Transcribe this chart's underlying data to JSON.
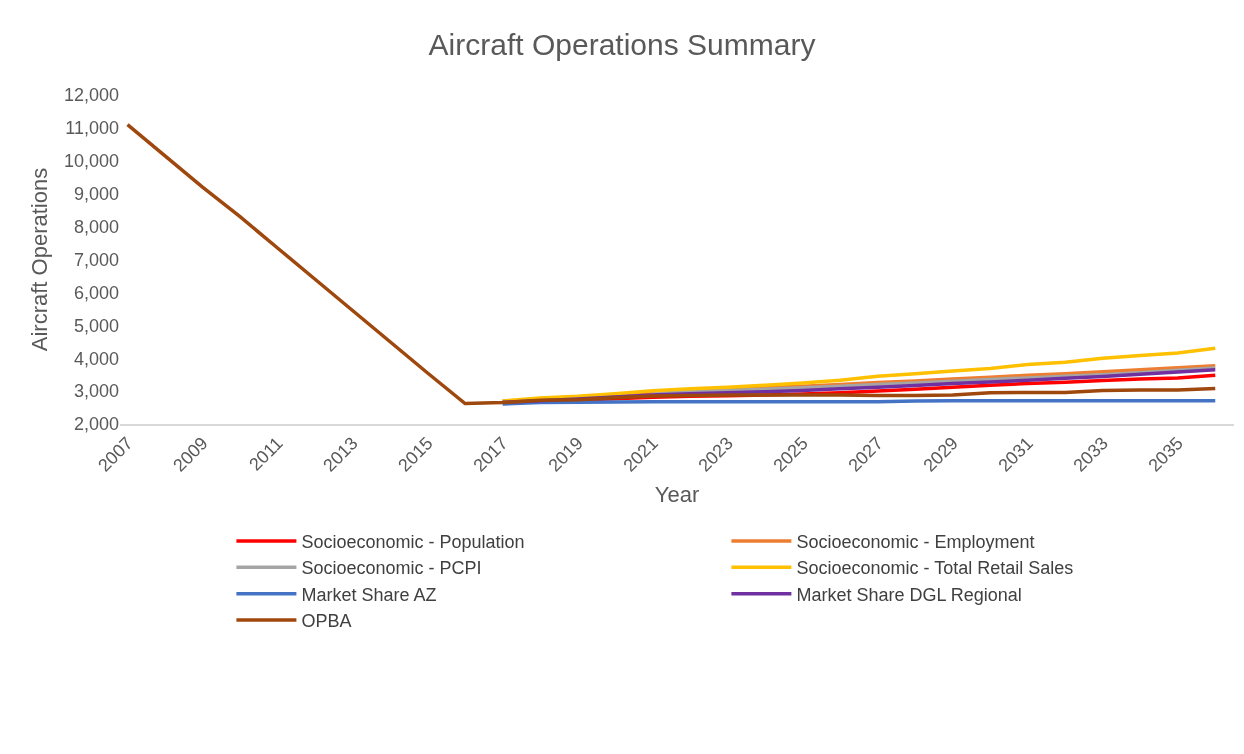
{
  "chart_data": {
    "type": "line",
    "title": "Aircraft Operations Summary",
    "xlabel": "Year",
    "ylabel": "Aircraft Operations",
    "categories": [
      "2007",
      null,
      "2009",
      null,
      "2011",
      null,
      "2013",
      null,
      "2015",
      null,
      "2017",
      null,
      "2019",
      null,
      "2021",
      null,
      "2023",
      null,
      "2025",
      null,
      "2027",
      null,
      "2029",
      null,
      "2031",
      null,
      "2033",
      null,
      "2035",
      null
    ],
    "ylim": [
      2000,
      12000
    ],
    "yticks": [
      {
        "value": 2000,
        "label": "2,000"
      },
      {
        "value": 3000,
        "label": "3,000"
      },
      {
        "value": 4000,
        "label": "4,000"
      },
      {
        "value": 5000,
        "label": "5,000"
      },
      {
        "value": 6000,
        "label": "6,000"
      },
      {
        "value": 7000,
        "label": "7,000"
      },
      {
        "value": 8000,
        "label": "8,000"
      },
      {
        "value": 9000,
        "label": "9,000"
      },
      {
        "value": 10000,
        "label": "10,000"
      },
      {
        "value": 11000,
        "label": "11,000"
      },
      {
        "value": 12000,
        "label": "12,000"
      }
    ],
    "grid": false,
    "legend": "bottom",
    "marker": "none",
    "line_style": "solid",
    "series": [
      {
        "name": "Socioeconomic - Population",
        "color": "#ff0000",
        "values": [
          null,
          null,
          null,
          null,
          null,
          null,
          null,
          null,
          null,
          null,
          null,
          null,
          2720,
          2770,
          2810,
          2840,
          2860,
          2880,
          2910,
          2950,
          3000,
          3060,
          3120,
          3180,
          3230,
          3270,
          3320,
          3370,
          3400,
          3480
        ]
      },
      {
        "name": "Socioeconomic - Employment",
        "color": "#ed7d31",
        "values": [
          null,
          null,
          null,
          null,
          null,
          null,
          null,
          null,
          null,
          null,
          2690,
          2770,
          2820,
          2900,
          2970,
          3020,
          3060,
          3100,
          3150,
          3200,
          3260,
          3310,
          3370,
          3420,
          3480,
          3530,
          3590,
          3650,
          3710,
          3770
        ]
      },
      {
        "name": "Socioeconomic - PCPI",
        "color": "#a5a5a5",
        "values": [
          null,
          null,
          null,
          null,
          null,
          null,
          null,
          null,
          null,
          null,
          null,
          null,
          null,
          null,
          2930,
          2980,
          3020,
          3060,
          3100,
          3150,
          3200,
          3250,
          3300,
          3350,
          3400,
          3450,
          3500,
          3560,
          3630,
          3700
        ]
      },
      {
        "name": "Socioeconomic - Total Retail Sales",
        "color": "#ffc000",
        "values": [
          null,
          null,
          null,
          null,
          null,
          null,
          null,
          null,
          null,
          null,
          2700,
          2790,
          2840,
          2920,
          3010,
          3070,
          3120,
          3180,
          3250,
          3330,
          3450,
          3530,
          3610,
          3690,
          3810,
          3880,
          4000,
          4080,
          4160,
          4300
        ]
      },
      {
        "name": "Market Share AZ",
        "color": "#4472c4",
        "values": [
          null,
          null,
          null,
          null,
          null,
          null,
          null,
          null,
          null,
          null,
          2610,
          2650,
          2660,
          2670,
          2680,
          2680,
          2680,
          2680,
          2680,
          2680,
          2680,
          2700,
          2710,
          2710,
          2710,
          2710,
          2710,
          2710,
          2710,
          2710
        ]
      },
      {
        "name": "Market Share DGL Regional",
        "color": "#7030a0",
        "values": [
          null,
          null,
          null,
          null,
          null,
          null,
          null,
          null,
          null,
          null,
          2660,
          2710,
          2760,
          2820,
          2880,
          2920,
          2950,
          2980,
          3020,
          3070,
          3120,
          3170,
          3230,
          3280,
          3330,
          3390,
          3440,
          3510,
          3580,
          3650
        ]
      },
      {
        "name": "OPBA",
        "color": "#9e480e",
        "values": [
          11100,
          10150,
          9200,
          8300,
          7350,
          6400,
          5450,
          4500,
          3550,
          2620,
          2650,
          2720,
          2740,
          2800,
          2850,
          2870,
          2880,
          2880,
          2880,
          2880,
          2870,
          2870,
          2880,
          2950,
          2960,
          2960,
          3020,
          3030,
          3030,
          3080
        ]
      }
    ]
  }
}
